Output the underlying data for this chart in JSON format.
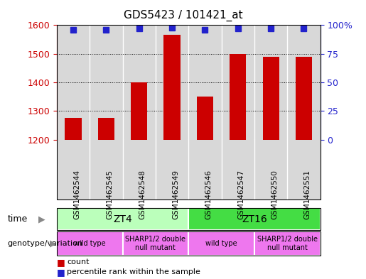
{
  "title": "GDS5423 / 101421_at",
  "samples": [
    "GSM1462544",
    "GSM1462545",
    "GSM1462548",
    "GSM1462549",
    "GSM1462546",
    "GSM1462547",
    "GSM1462550",
    "GSM1462551"
  ],
  "counts": [
    1275,
    1275,
    1400,
    1565,
    1350,
    1500,
    1490,
    1490
  ],
  "percentiles": [
    96,
    96,
    97,
    98,
    96,
    97,
    97,
    97
  ],
  "ylim_left": [
    1200,
    1600
  ],
  "ylim_right": [
    0,
    100
  ],
  "yticks_left": [
    1200,
    1300,
    1400,
    1500,
    1600
  ],
  "yticks_right": [
    0,
    25,
    50,
    75,
    100
  ],
  "bar_color": "#cc0000",
  "dot_color": "#2222cc",
  "bar_width": 0.5,
  "time_groups": [
    {
      "label": "ZT4",
      "start": 0,
      "end": 4,
      "color": "#bbffbb"
    },
    {
      "label": "ZT16",
      "start": 4,
      "end": 8,
      "color": "#44dd44"
    }
  ],
  "genotype_groups": [
    {
      "label": "wild type",
      "start": 0,
      "end": 2,
      "color": "#ee77ee"
    },
    {
      "label": "SHARP1/2 double\nnull mutant",
      "start": 2,
      "end": 4,
      "color": "#ee77ee"
    },
    {
      "label": "wild type",
      "start": 4,
      "end": 6,
      "color": "#ee77ee"
    },
    {
      "label": "SHARP1/2 double\nnull mutant",
      "start": 6,
      "end": 8,
      "color": "#ee77ee"
    }
  ],
  "tick_label_color_left": "#cc0000",
  "tick_label_color_right": "#2222cc",
  "bg_color": "#d8d8d8",
  "separator_color": "#ffffff"
}
